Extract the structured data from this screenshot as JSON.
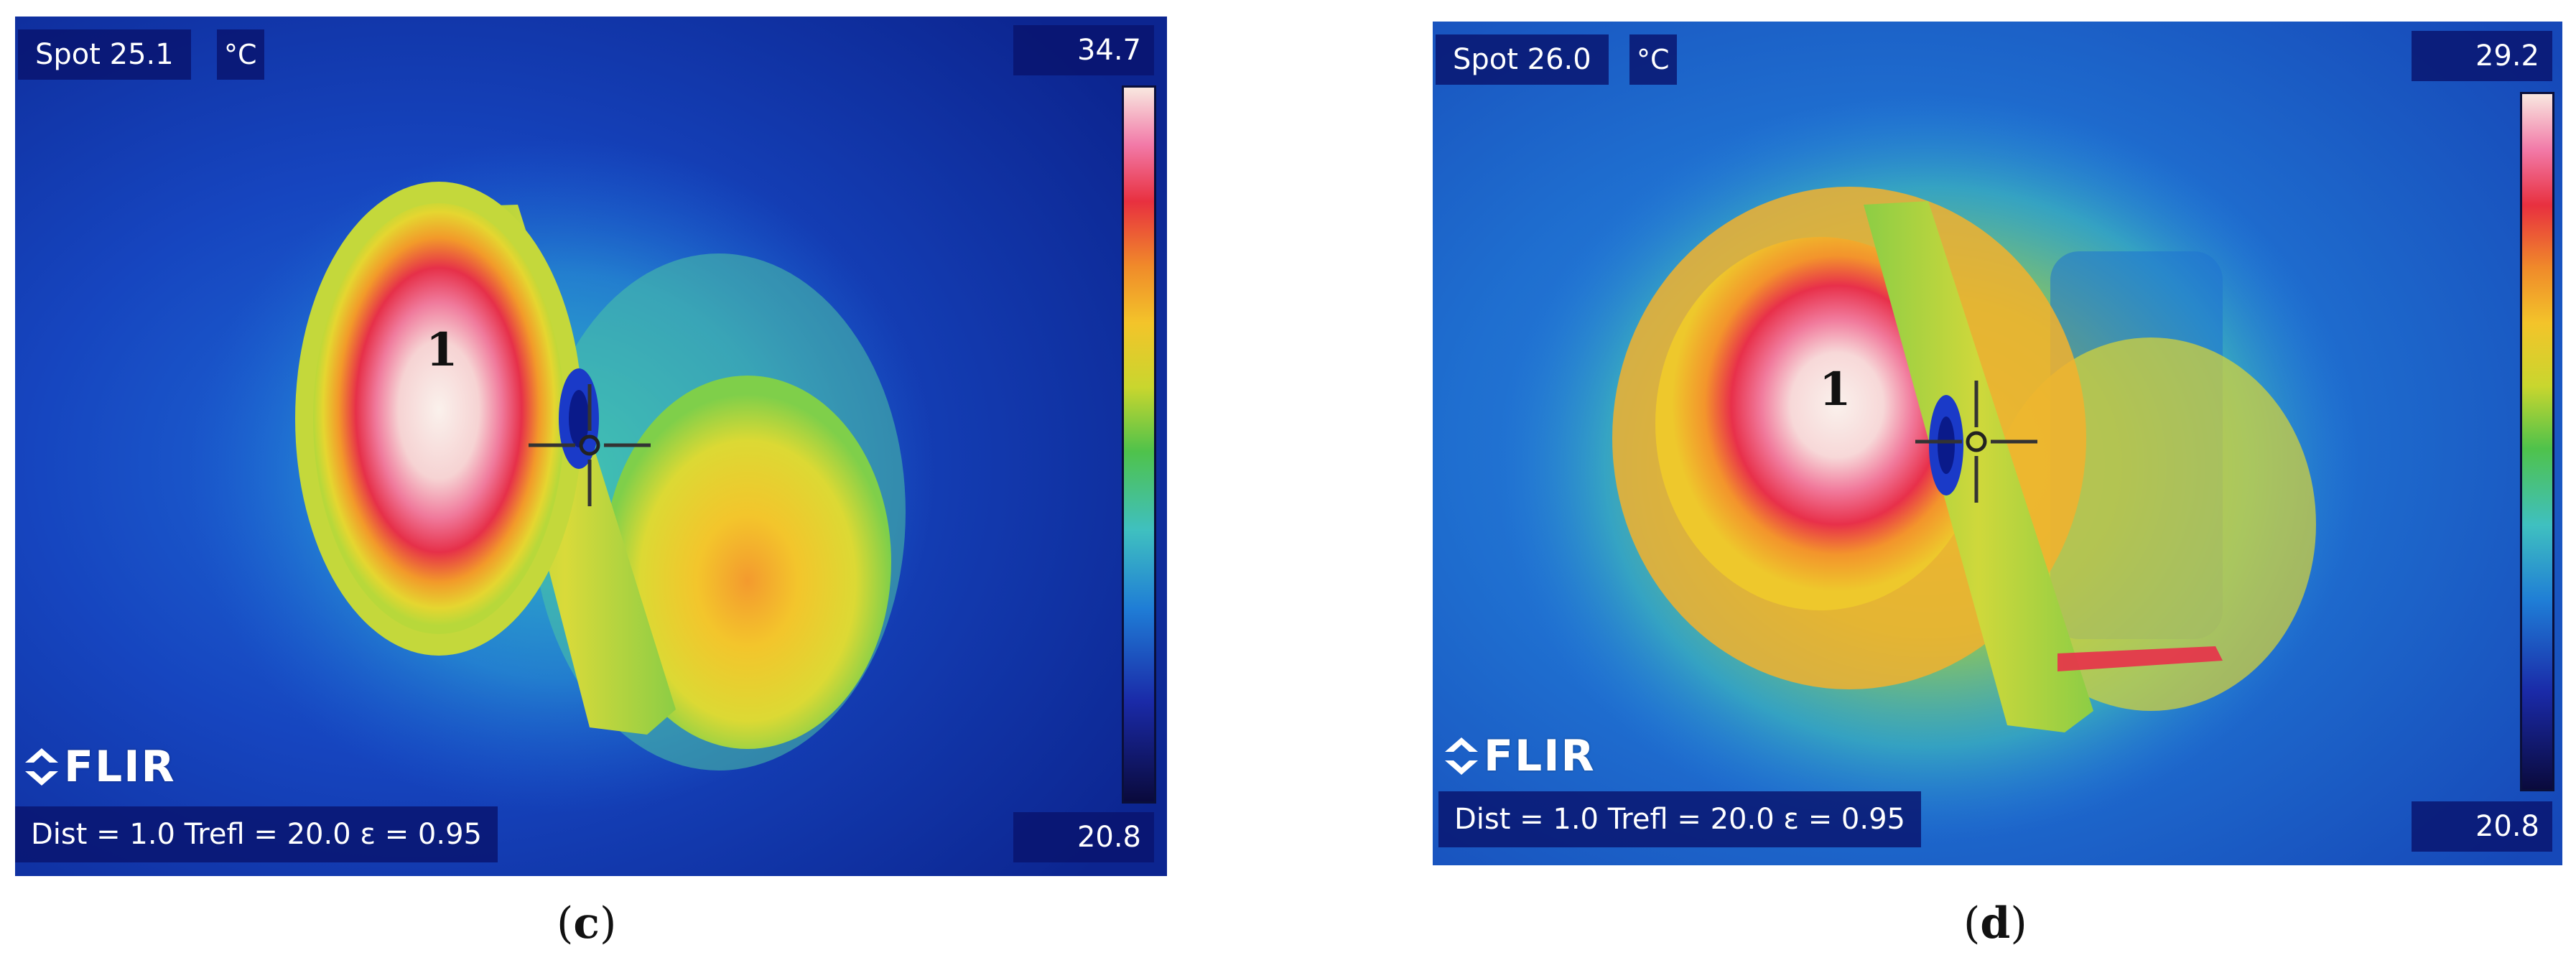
{
  "panels": [
    {
      "spot_label": "Spot 25.1",
      "unit": "°C",
      "scale_max": "34.7",
      "scale_min": "20.8",
      "zone_label": "1",
      "logo": "FLIR",
      "params": "Dist = 1.0  Trefl = 20.0  ε = 0.95",
      "caption_open": "(",
      "caption_letter": "c",
      "caption_close": ")"
    },
    {
      "spot_label": "Spot 26.0",
      "unit": "°C",
      "scale_max": "29.2",
      "scale_min": "20.8",
      "zone_label": "1",
      "logo": "FLIR",
      "params": "Dist = 1.0  Trefl = 20.0  ε = 0.95",
      "caption_open": "(",
      "caption_letter": "d",
      "caption_close": ")"
    }
  ],
  "icons": {
    "crosshair": "crosshair-icon",
    "logo_mark": "flir-logo-mark-icon"
  },
  "colors": {
    "background_cold": "#0d2a9a",
    "mid_yellow": "#e8d62e",
    "hot_red": "#e8304a",
    "hottest_white": "#f6ece4",
    "osd_box": "#08146e"
  }
}
